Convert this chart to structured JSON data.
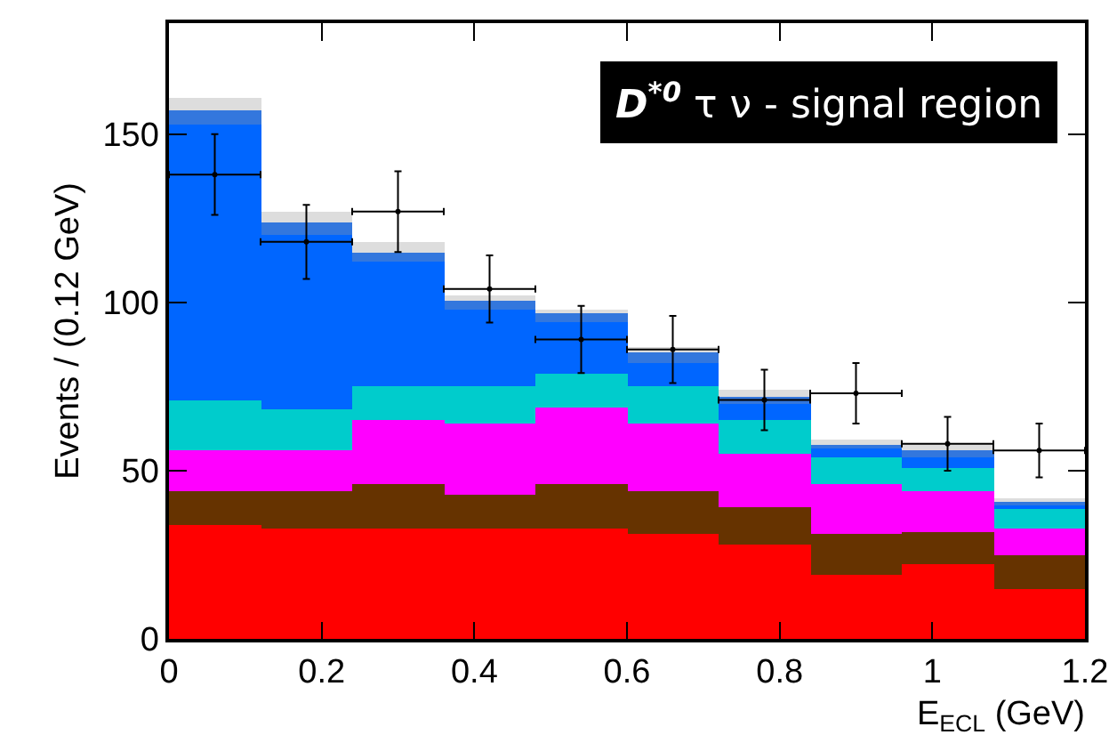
{
  "chart_data": {
    "type": "bar",
    "xlabel": "E$_{ECL}$ (GeV)",
    "ylabel": "Events / (0.12 GeV)",
    "annotations": [
      "D$^{*0}$ τ ν - signal region"
    ],
    "x": [
      0.06,
      0.18,
      0.3,
      0.42,
      0.54,
      0.66,
      0.78,
      0.9,
      1.02,
      1.14
    ],
    "stacked": true,
    "series": [
      {
        "color": "#ff0000",
        "values": [
          34,
          33,
          33,
          33,
          33,
          31,
          28,
          19,
          22,
          15
        ]
      },
      {
        "color": "#663300",
        "values": [
          10,
          11,
          13,
          10,
          13,
          13,
          11,
          12,
          10,
          10
        ]
      },
      {
        "color": "#ff00ff",
        "values": [
          12,
          12,
          19,
          21,
          23,
          20,
          16,
          15,
          12,
          8
        ]
      },
      {
        "color": "#00cccc",
        "values": [
          15,
          12,
          10,
          11,
          10,
          11,
          10,
          8,
          7,
          6
        ]
      },
      {
        "color": "#0066ff",
        "values": [
          82,
          52,
          37,
          23,
          15,
          7,
          5,
          3,
          3,
          1
        ]
      },
      {
        "color": "#3377dd",
        "values": [
          4,
          4,
          3,
          3,
          3,
          3,
          2,
          1,
          2,
          1
        ]
      },
      {
        "color": "#dddddd",
        "values": [
          4,
          3,
          3,
          1,
          1,
          2,
          2,
          1,
          2,
          1
        ]
      },
      {
        "type": "scatter",
        "color": "#000000",
        "marker": "none",
        "values": [
          138,
          118,
          127,
          104,
          89,
          86,
          71,
          73,
          58,
          56
        ],
        "errors": [
          12,
          11,
          12,
          10,
          10,
          10,
          9,
          9,
          8,
          8
        ],
        "xerrors": [
          0.06,
          0.06,
          0.06,
          0.06,
          0.06,
          0.06,
          0.06,
          0.06,
          0.06,
          0.06
        ]
      }
    ],
    "xlim": [
      0,
      1.2
    ],
    "xticks": [
      0,
      0.2,
      0.4,
      0.6,
      0.8,
      1,
      1.2
    ],
    "ylim": [
      0,
      183
    ],
    "yticks": [
      0,
      50,
      100,
      150
    ],
    "grid": false
  }
}
